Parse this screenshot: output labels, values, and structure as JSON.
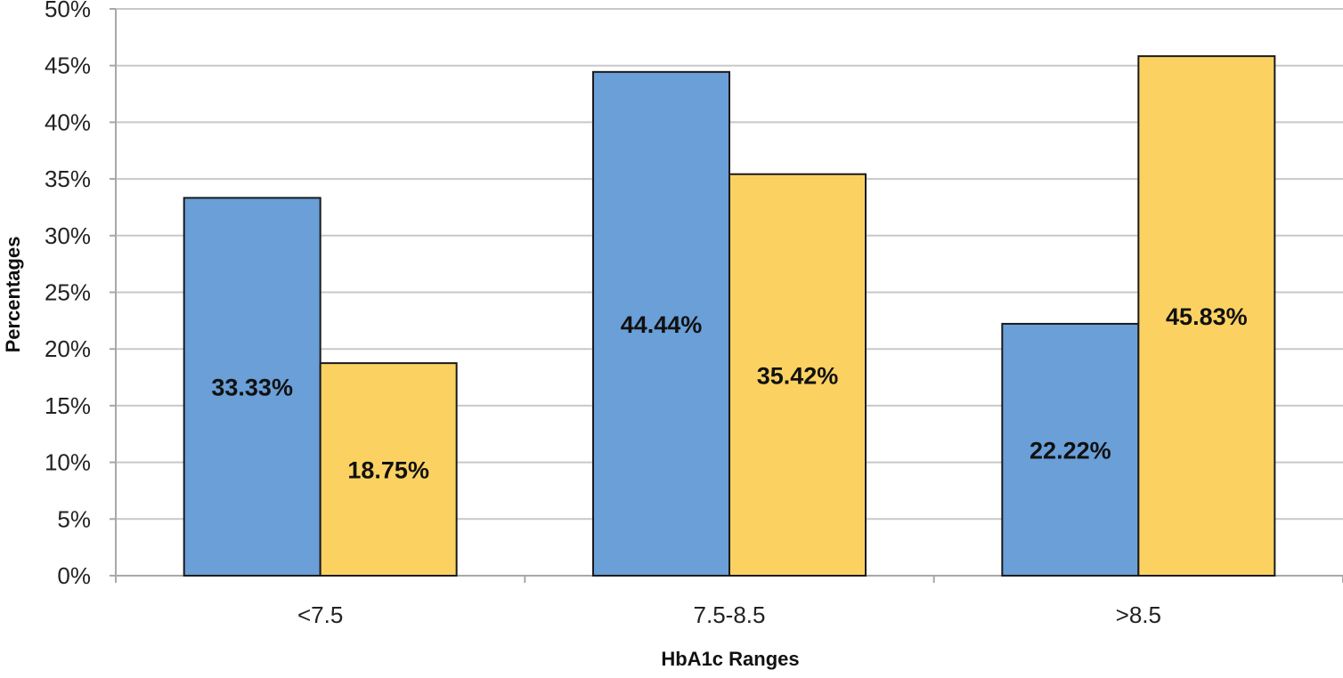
{
  "chart_data": {
    "type": "bar",
    "title": "",
    "xlabel": "HbA1c Ranges",
    "ylabel": "Percentages",
    "categories": [
      "<7.5",
      "7.5-8.5",
      ">8.5"
    ],
    "series": [
      {
        "values": [
          33.33,
          44.44,
          22.22
        ],
        "labels": [
          "33.33%",
          "44.44%",
          "22.22%"
        ],
        "color": "#6a9fd8"
      },
      {
        "values": [
          18.75,
          35.42,
          45.83
        ],
        "labels": [
          "18.75%",
          "35.42%",
          "45.83%"
        ],
        "color": "#fbd262"
      }
    ],
    "ylim": [
      0,
      50
    ],
    "yticks": [
      0,
      5,
      10,
      15,
      20,
      25,
      30,
      35,
      40,
      45,
      50
    ],
    "ytick_labels": [
      "0%",
      "5%",
      "10%",
      "15%",
      "20%",
      "25%",
      "30%",
      "35%",
      "40%",
      "45%",
      "50%"
    ],
    "grid": true,
    "legend": "none",
    "gridline_color": "#c8c8c8",
    "bar_edge_color": "#1a1a1a"
  }
}
